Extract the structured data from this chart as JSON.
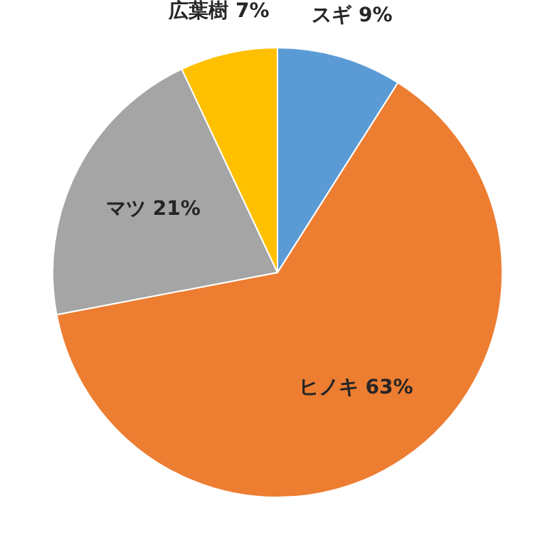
{
  "chart_data": {
    "type": "pie",
    "categories": [
      "スギ",
      "ヒノキ",
      "マツ",
      "広葉樹"
    ],
    "values": [
      9,
      63,
      21,
      7
    ],
    "colors": [
      "#5b9bd5",
      "#ed7d31",
      "#a5a5a5",
      "#ffc000"
    ],
    "value_labels": [
      "9%",
      "63%",
      "21%",
      "7%"
    ]
  }
}
